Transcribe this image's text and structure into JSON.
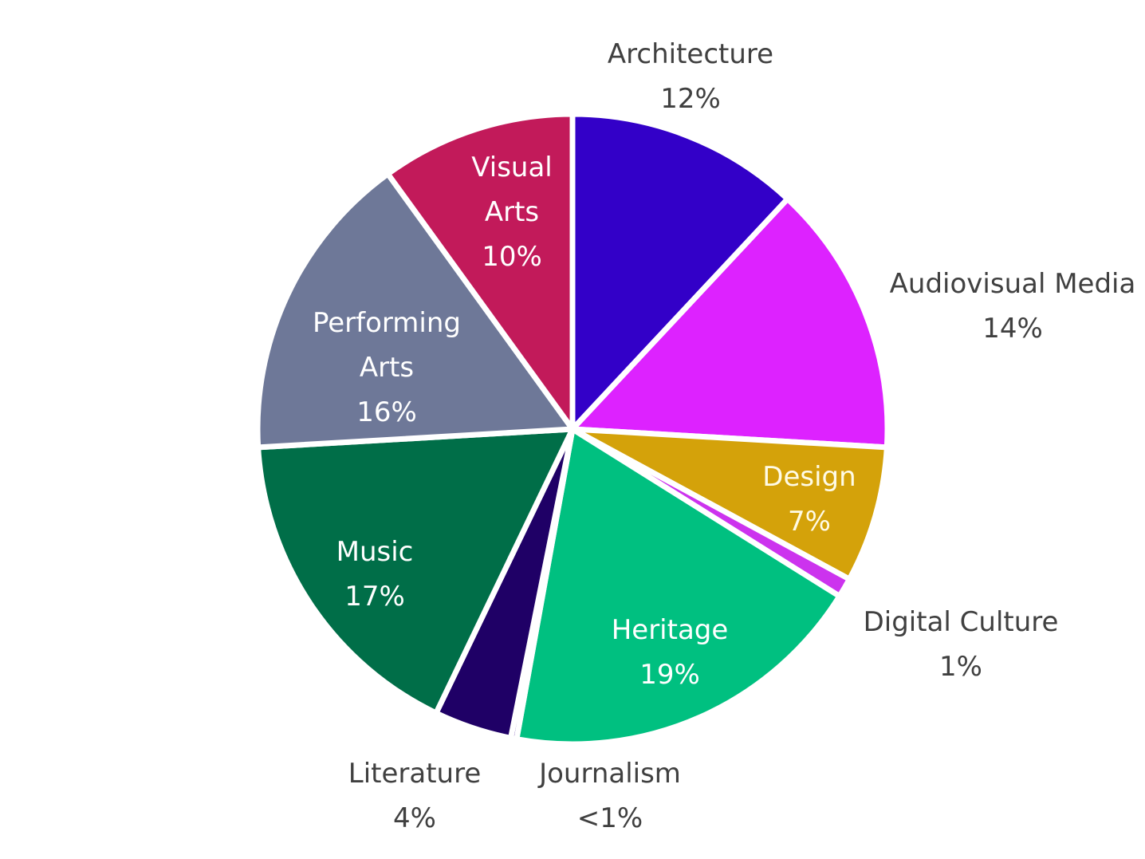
{
  "chart_data": {
    "type": "pie",
    "categories": [
      "Architecture",
      "Audiovisual Media",
      "Design",
      "Digital Culture",
      "Heritage",
      "Journalism",
      "Literature",
      "Music",
      "Performing Arts",
      "Visual Arts"
    ],
    "values": [
      12,
      14,
      7,
      1,
      19,
      0.3,
      4,
      17,
      16,
      10
    ],
    "value_labels": [
      "12%",
      "14%",
      "7%",
      "1%",
      "19%",
      "<1%",
      "4%",
      "17%",
      "16%",
      "10%"
    ],
    "colors": [
      "#3300c8",
      "#dd22ff",
      "#d4a20a",
      "#cc33ee",
      "#00c080",
      "#5a2aa0",
      "#1f0066",
      "#006e48",
      "#6e7898",
      "#c21a5a"
    ]
  }
}
